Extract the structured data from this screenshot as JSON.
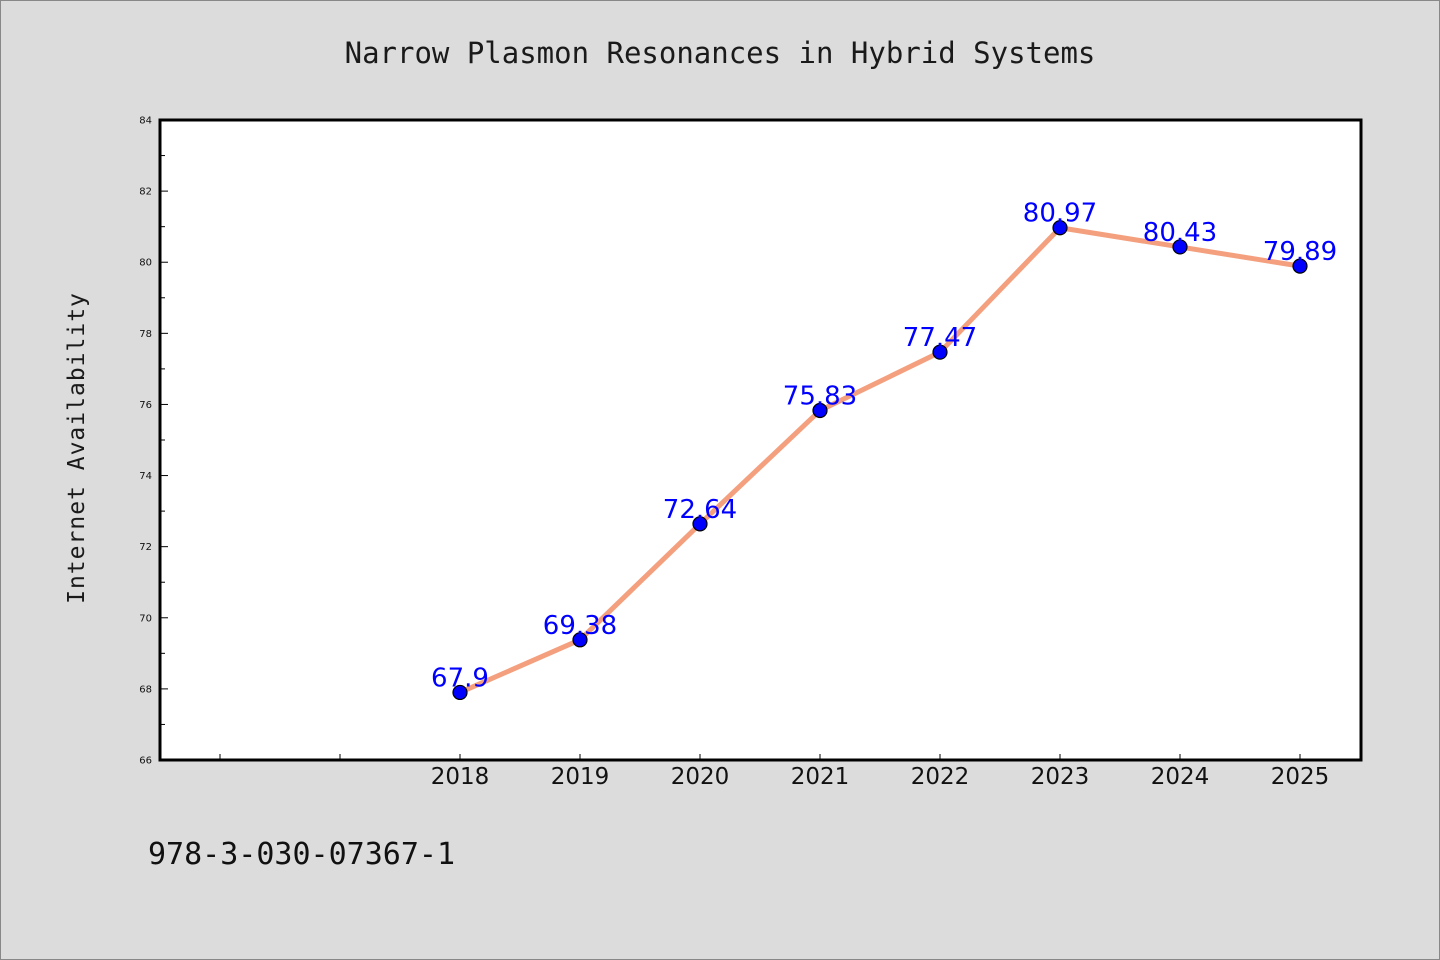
{
  "chart_data": {
    "type": "line",
    "title": "Narrow Plasmon Resonances in Hybrid Systems",
    "xlabel": "",
    "ylabel": "Internet Availability",
    "categories": [
      "2018",
      "2019",
      "2020",
      "2021",
      "2022",
      "2023",
      "2024",
      "2025"
    ],
    "series": [
      {
        "values": [
          67.9,
          69.38,
          72.64,
          75.83,
          77.47,
          80.97,
          80.43,
          79.89
        ],
        "labels": [
          "67.9",
          "69.38",
          "72.64",
          "75.83",
          "77.47",
          "80.97",
          "80.43",
          "79.89"
        ]
      }
    ],
    "ylim": [
      66,
      84
    ],
    "yticks": [
      "66",
      "68",
      "70",
      "72",
      "74",
      "76",
      "78",
      "80",
      "82",
      "84"
    ],
    "grid": false,
    "legend": "none"
  },
  "footer_text": "978-3-030-07367-1",
  "colors": {
    "background": "#dcdcdc",
    "plot_area": "#ffffff",
    "line": "#f4a07e",
    "marker": "#0000ff",
    "data_label": "#0000ff"
  }
}
